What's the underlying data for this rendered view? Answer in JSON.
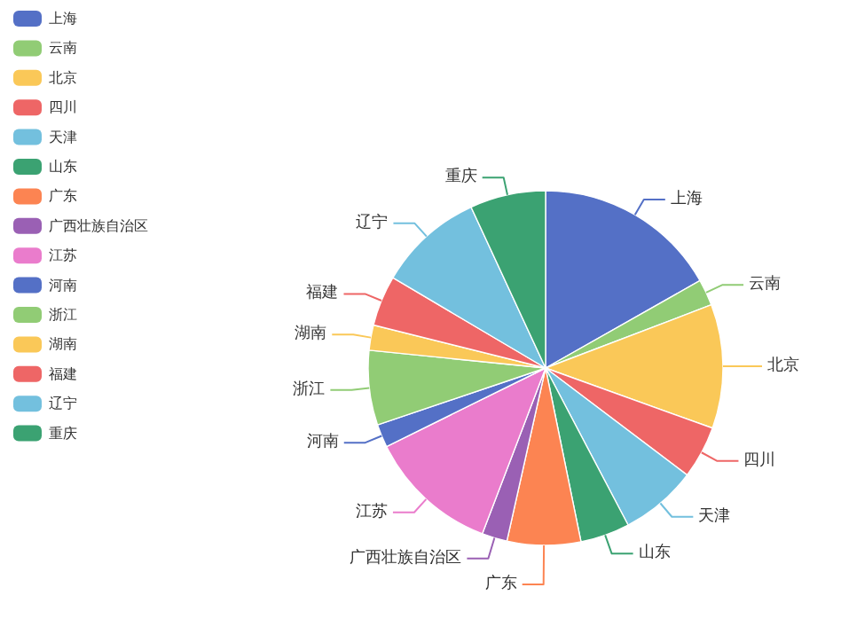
{
  "chart_data": {
    "type": "pie",
    "legend": "top left",
    "categories": [
      "上海",
      "云南",
      "北京",
      "四川",
      "天津",
      "山东",
      "广东",
      "广西壮族自治区",
      "江苏",
      "河南",
      "浙江",
      "湖南",
      "福建",
      "辽宁",
      "重庆"
    ],
    "values": [
      16.8,
      2.4,
      11.3,
      4.8,
      7.0,
      4.5,
      6.7,
      2.3,
      11.9,
      2.1,
      6.8,
      2.3,
      4.6,
      9.6,
      6.9
    ],
    "colors": [
      "#5470c6",
      "#91cc75",
      "#fac858",
      "#ee6666",
      "#73c0de",
      "#3ba272",
      "#fc8452",
      "#9a60b4",
      "#ea7ccc",
      "#5470c6",
      "#91cc75",
      "#fac858",
      "#ee6666",
      "#73c0de",
      "#3ba272"
    ]
  }
}
